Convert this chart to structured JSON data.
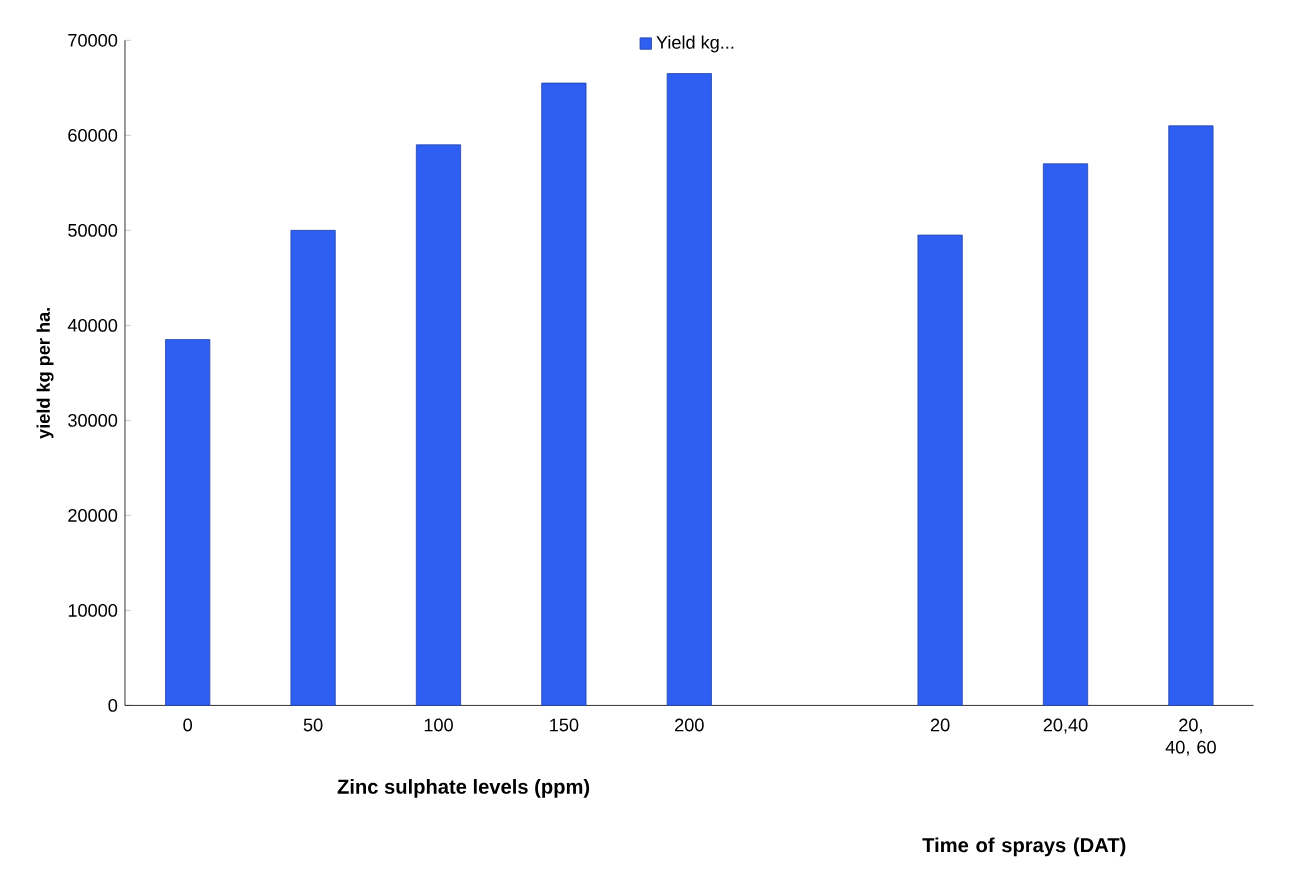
{
  "chart_data": {
    "type": "bar",
    "xlabel": "Zinc sulphate levels (ppm)",
    "ylabel": "yield kg per ha.",
    "categories": [
      "0",
      "50",
      "100",
      "150",
      "200",
      null,
      "20",
      "20,40",
      "20, 40, 60"
    ],
    "series": [
      {
        "name": "Yield kg...",
        "color": "#2f5ff2",
        "values": [
          38500,
          50000,
          59000,
          65500,
          66500,
          null,
          49500,
          57000,
          61000
        ]
      }
    ],
    "ylim": [
      0,
      70000
    ],
    "yticks": [
      0,
      10000,
      20000,
      30000,
      40000,
      50000,
      60000,
      70000
    ],
    "grid": false,
    "legend": "top",
    "annotations": [
      "Time of sprays (DAT)"
    ]
  }
}
